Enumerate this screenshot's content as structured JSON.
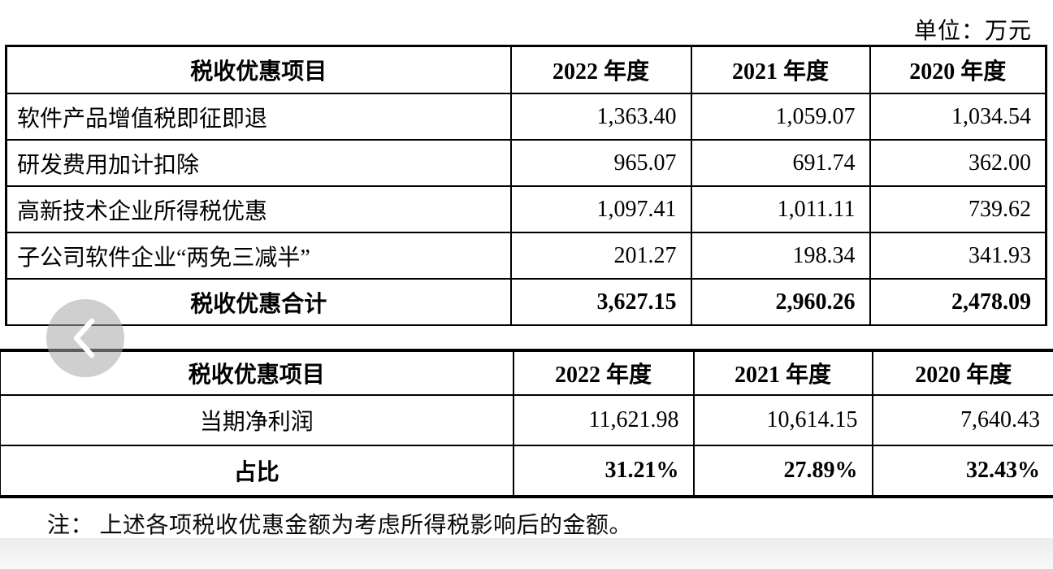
{
  "page": {
    "unit_label": "单位：万元",
    "note": "注： 上述各项税收优惠金额为考虑所得税影响后的金额。"
  },
  "colors": {
    "border": "#000000",
    "text": "#000000",
    "nav_circle": "#a8a8a8",
    "nav_chevron": "#ffffff",
    "bottom_strip": "#ececec"
  },
  "nav": {
    "back_icon": "chevron-left-icon"
  },
  "chart_data": [
    {
      "type": "table",
      "title": "税收优惠明细",
      "headers": [
        "税收优惠项目",
        "2022 年度",
        "2021 年度",
        "2020 年度"
      ],
      "rows": [
        {
          "label": "软件产品增值税即征即退",
          "values": [
            "1,363.40",
            "1,059.07",
            "1,034.54"
          ],
          "bold": false,
          "label_align": "left"
        },
        {
          "label": "研发费用加计扣除",
          "values": [
            "965.07",
            "691.74",
            "362.00"
          ],
          "bold": false,
          "label_align": "left"
        },
        {
          "label": "高新技术企业所得税优惠",
          "values": [
            "1,097.41",
            "1,011.11",
            "739.62"
          ],
          "bold": false,
          "label_align": "left"
        },
        {
          "label": "子公司软件企业“两免三减半”",
          "values": [
            "201.27",
            "198.34",
            "341.93"
          ],
          "bold": false,
          "label_align": "left"
        },
        {
          "label": "税收优惠合计",
          "values": [
            "3,627.15",
            "2,960.26",
            "2,478.09"
          ],
          "bold": true,
          "label_align": "center"
        }
      ]
    },
    {
      "type": "table",
      "title": "税收优惠占净利润比例",
      "headers": [
        "税收优惠项目",
        "2022 年度",
        "2021 年度",
        "2020 年度"
      ],
      "rows": [
        {
          "label": "当期净利润",
          "values": [
            "11,621.98",
            "10,614.15",
            "7,640.43"
          ],
          "bold": false,
          "label_align": "center"
        },
        {
          "label": "占比",
          "values": [
            "31.21%",
            "27.89%",
            "32.43%"
          ],
          "bold": true,
          "label_align": "center"
        }
      ]
    }
  ]
}
